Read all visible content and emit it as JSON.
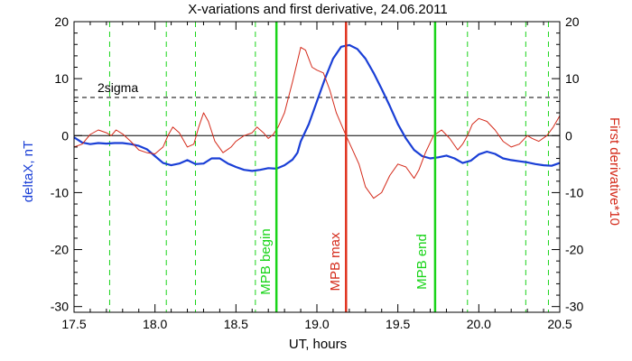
{
  "chart_data": {
    "type": "line",
    "title": "X-variations and first derivative, 24.06.2011",
    "xlabel": "UT, hours",
    "ylabel_left": "deltaX, nT",
    "ylabel_right": "First derivative*10",
    "xlim": [
      17.5,
      20.5
    ],
    "ylim": [
      -31,
      20
    ],
    "x_ticks": [
      "17.5",
      "18.0",
      "18.5",
      "19.0",
      "19.5",
      "20.0",
      "20.5"
    ],
    "x_tick_values": [
      17.5,
      18.0,
      18.5,
      19.0,
      19.5,
      20.0,
      20.5
    ],
    "y_ticks": [
      "20",
      "10",
      "0",
      "-10",
      "-20",
      "-30"
    ],
    "y_tick_values": [
      20,
      10,
      0,
      -10,
      -20,
      -30
    ],
    "colors": {
      "deltaX": "#1a3fd6",
      "derivative": "#d42a1a",
      "mpb_bounds": "#19d419",
      "mpb_max": "#e0321e",
      "axis": "#000000"
    },
    "annotations": {
      "sigma_label": "2sigma",
      "sigma_level": 6.7,
      "mpb_begin": {
        "label": "MPB begin",
        "x": 18.75
      },
      "mpb_max": {
        "label": "MPB max",
        "x": 19.18
      },
      "mpb_end": {
        "label": "MPB end",
        "x": 19.73
      },
      "dashed_verticals_x": [
        17.72,
        18.07,
        18.25,
        18.62,
        19.93,
        20.29,
        20.43
      ]
    },
    "series": [
      {
        "key": "deltaX",
        "points": [
          [
            17.5,
            -0.3
          ],
          [
            17.55,
            -1.2
          ],
          [
            17.6,
            -1.5
          ],
          [
            17.65,
            -1.3
          ],
          [
            17.7,
            -1.4
          ],
          [
            17.75,
            -1.3
          ],
          [
            17.8,
            -1.3
          ],
          [
            17.85,
            -1.5
          ],
          [
            17.9,
            -1.8
          ],
          [
            17.95,
            -2.4
          ],
          [
            18.0,
            -3.6
          ],
          [
            18.05,
            -4.8
          ],
          [
            18.1,
            -5.2
          ],
          [
            18.15,
            -4.9
          ],
          [
            18.2,
            -4.3
          ],
          [
            18.25,
            -5.0
          ],
          [
            18.3,
            -4.9
          ],
          [
            18.35,
            -4.0
          ],
          [
            18.4,
            -4.0
          ],
          [
            18.45,
            -4.9
          ],
          [
            18.5,
            -5.5
          ],
          [
            18.55,
            -6.0
          ],
          [
            18.6,
            -6.2
          ],
          [
            18.65,
            -6.0
          ],
          [
            18.7,
            -5.7
          ],
          [
            18.75,
            -5.8
          ],
          [
            18.8,
            -5.2
          ],
          [
            18.85,
            -4.2
          ],
          [
            18.88,
            -3.0
          ],
          [
            18.9,
            -1.0
          ],
          [
            18.95,
            2.0
          ],
          [
            19.0,
            6.0
          ],
          [
            19.05,
            10.0
          ],
          [
            19.1,
            13.5
          ],
          [
            19.15,
            15.6
          ],
          [
            19.2,
            15.9
          ],
          [
            19.25,
            15.2
          ],
          [
            19.3,
            13.5
          ],
          [
            19.35,
            11.0
          ],
          [
            19.4,
            8.2
          ],
          [
            19.45,
            5.2
          ],
          [
            19.5,
            2.0
          ],
          [
            19.55,
            -0.5
          ],
          [
            19.6,
            -2.5
          ],
          [
            19.65,
            -3.6
          ],
          [
            19.7,
            -4.0
          ],
          [
            19.75,
            -3.8
          ],
          [
            19.8,
            -3.5
          ],
          [
            19.85,
            -4.0
          ],
          [
            19.9,
            -4.8
          ],
          [
            19.95,
            -4.4
          ],
          [
            20.0,
            -3.3
          ],
          [
            20.05,
            -2.8
          ],
          [
            20.1,
            -3.2
          ],
          [
            20.15,
            -4.0
          ],
          [
            20.2,
            -4.3
          ],
          [
            20.25,
            -4.5
          ],
          [
            20.3,
            -4.7
          ],
          [
            20.35,
            -5.0
          ],
          [
            20.4,
            -5.2
          ],
          [
            20.45,
            -5.3
          ],
          [
            20.5,
            -4.8
          ]
        ]
      },
      {
        "key": "derivative",
        "points": [
          [
            17.5,
            -2.0
          ],
          [
            17.55,
            -1.5
          ],
          [
            17.6,
            0.2
          ],
          [
            17.65,
            1.0
          ],
          [
            17.7,
            0.5
          ],
          [
            17.73,
            0.0
          ],
          [
            17.76,
            1.0
          ],
          [
            17.8,
            0.3
          ],
          [
            17.85,
            -1.0
          ],
          [
            17.9,
            -2.5
          ],
          [
            17.95,
            -3.0
          ],
          [
            18.0,
            -3.2
          ],
          [
            18.05,
            -2.0
          ],
          [
            18.08,
            0.0
          ],
          [
            18.11,
            1.5
          ],
          [
            18.15,
            0.5
          ],
          [
            18.2,
            -2.0
          ],
          [
            18.24,
            -1.5
          ],
          [
            18.27,
            1.5
          ],
          [
            18.3,
            4.0
          ],
          [
            18.33,
            2.5
          ],
          [
            18.37,
            -1.0
          ],
          [
            18.42,
            -3.0
          ],
          [
            18.47,
            -2.0
          ],
          [
            18.5,
            -1.0
          ],
          [
            18.55,
            0.0
          ],
          [
            18.6,
            0.5
          ],
          [
            18.63,
            1.5
          ],
          [
            18.67,
            0.5
          ],
          [
            18.7,
            -0.5
          ],
          [
            18.73,
            0.2
          ],
          [
            18.76,
            1.5
          ],
          [
            18.8,
            4.0
          ],
          [
            18.85,
            9.5
          ],
          [
            18.9,
            15.5
          ],
          [
            18.93,
            15.0
          ],
          [
            18.97,
            12.0
          ],
          [
            19.0,
            11.5
          ],
          [
            19.04,
            11.0
          ],
          [
            19.08,
            8.0
          ],
          [
            19.12,
            4.0
          ],
          [
            19.18,
            0.0
          ],
          [
            19.22,
            -2.5
          ],
          [
            19.26,
            -5.0
          ],
          [
            19.3,
            -9.0
          ],
          [
            19.35,
            -11.0
          ],
          [
            19.4,
            -10.0
          ],
          [
            19.45,
            -7.0
          ],
          [
            19.5,
            -5.0
          ],
          [
            19.55,
            -5.5
          ],
          [
            19.6,
            -7.5
          ],
          [
            19.63,
            -6.0
          ],
          [
            19.67,
            -3.0
          ],
          [
            19.72,
            0.0
          ],
          [
            19.77,
            1.0
          ],
          [
            19.82,
            -0.5
          ],
          [
            19.87,
            -2.5
          ],
          [
            19.9,
            -1.5
          ],
          [
            19.93,
            0.0
          ],
          [
            19.96,
            2.0
          ],
          [
            20.0,
            3.0
          ],
          [
            20.05,
            2.5
          ],
          [
            20.1,
            1.0
          ],
          [
            20.15,
            -1.0
          ],
          [
            20.2,
            -2.0
          ],
          [
            20.25,
            -1.5
          ],
          [
            20.3,
            0.0
          ],
          [
            20.33,
            -0.5
          ],
          [
            20.37,
            -1.0
          ],
          [
            20.42,
            0.0
          ],
          [
            20.46,
            1.5
          ],
          [
            20.5,
            3.5
          ]
        ]
      }
    ]
  }
}
